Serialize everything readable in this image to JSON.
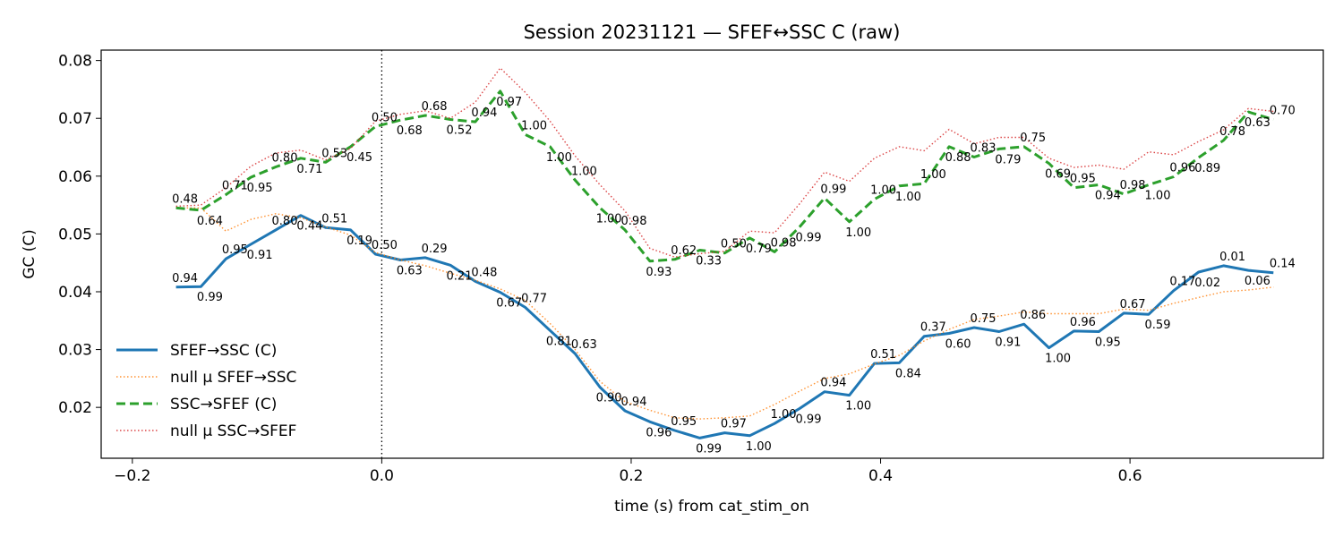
{
  "chart_data": {
    "type": "line",
    "title": "Session 20231121 — SFEF↔SSC C (raw)",
    "xlabel": "time (s) from cat_stim_on",
    "ylabel": "GC (C)",
    "xlim": [
      -0.225,
      0.755
    ],
    "ylim": [
      0.0112,
      0.0818
    ],
    "xticks": [
      -0.2,
      0.0,
      0.2,
      0.4,
      0.6
    ],
    "xtick_labels": [
      "−0.2",
      "0.0",
      "0.2",
      "0.4",
      "0.6"
    ],
    "yticks": [
      0.02,
      0.03,
      0.04,
      0.05,
      0.06,
      0.07,
      0.08
    ],
    "ytick_labels": [
      "0.02",
      "0.03",
      "0.04",
      "0.05",
      "0.06",
      "0.07",
      "0.08"
    ],
    "vline_x": 0.0,
    "grid": false,
    "legend_position": "lower-left",
    "x": [
      -0.165,
      -0.145,
      -0.125,
      -0.105,
      -0.085,
      -0.065,
      -0.045,
      -0.025,
      -0.005,
      0.015,
      0.035,
      0.055,
      0.075,
      0.095,
      0.115,
      0.135,
      0.155,
      0.175,
      0.195,
      0.215,
      0.235,
      0.255,
      0.275,
      0.295,
      0.315,
      0.335,
      0.355,
      0.375,
      0.395,
      0.415,
      0.435,
      0.455,
      0.475,
      0.495,
      0.515,
      0.535,
      0.555,
      0.575,
      0.595,
      0.615,
      0.635,
      0.655,
      0.675,
      0.695,
      0.715
    ],
    "series": [
      {
        "name": "SFEF→SSC (C)",
        "color": "#1f77b4",
        "style": "solid",
        "values": [
          0.0408,
          0.0409,
          0.0457,
          0.0482,
          0.0507,
          0.0532,
          0.0511,
          0.0507,
          0.0465,
          0.0455,
          0.0459,
          0.0446,
          0.0418,
          0.0399,
          0.0373,
          0.0333,
          0.0293,
          0.0235,
          0.0194,
          0.0175,
          0.016,
          0.0147,
          0.0156,
          0.0151,
          0.0172,
          0.0198,
          0.0227,
          0.0221,
          0.0276,
          0.0277,
          0.0323,
          0.0328,
          0.0338,
          0.0331,
          0.0344,
          0.0303,
          0.0332,
          0.0331,
          0.0363,
          0.0361,
          0.0402,
          0.0434,
          0.0445,
          0.0437,
          0.0433
        ],
        "p_values": [
          "0.94",
          "0.99",
          "0.95",
          "0.91",
          "0.80",
          "0.44",
          "0.51",
          "0.19",
          "0.50",
          "0.63",
          "0.29",
          "0.21",
          "0.48",
          "0.67",
          "0.77",
          "0.81",
          "0.63",
          "0.90",
          "0.94",
          "0.96",
          "0.95",
          "0.99",
          "0.97",
          "1.00",
          "1.00",
          "0.99",
          "0.94",
          "1.00",
          "0.51",
          "0.84",
          "0.37",
          "0.60",
          "0.75",
          "0.91",
          "0.86",
          "1.00",
          "0.96",
          "0.95",
          "0.67",
          "0.59",
          "0.17",
          "0.02",
          "0.01",
          "0.06",
          "0.14"
        ]
      },
      {
        "name": "null μ SFEF→SSC",
        "color": "#ff7f0e",
        "style": "dotted",
        "values": [
          0.0545,
          0.0545,
          0.0505,
          0.0525,
          0.0535,
          0.0528,
          0.0512,
          0.0498,
          0.0468,
          0.0455,
          0.0445,
          0.0432,
          0.042,
          0.0405,
          0.0385,
          0.0345,
          0.03,
          0.0245,
          0.021,
          0.0195,
          0.0182,
          0.018,
          0.0182,
          0.0185,
          0.0205,
          0.0228,
          0.025,
          0.0258,
          0.0275,
          0.029,
          0.0315,
          0.0335,
          0.0352,
          0.0358,
          0.0365,
          0.0362,
          0.0362,
          0.0362,
          0.037,
          0.0368,
          0.038,
          0.039,
          0.04,
          0.0403,
          0.0408
        ]
      },
      {
        "name": "SSC→SFEF (C)",
        "color": "#2ca02c",
        "style": "dashed",
        "values": [
          0.0545,
          0.0541,
          0.0568,
          0.0598,
          0.0616,
          0.0631,
          0.0624,
          0.0651,
          0.0686,
          0.0697,
          0.0705,
          0.0698,
          0.0694,
          0.0747,
          0.0672,
          0.0651,
          0.0593,
          0.0545,
          0.0507,
          0.0453,
          0.0456,
          0.0472,
          0.0467,
          0.0493,
          0.0469,
          0.0512,
          0.0562,
          0.0521,
          0.056,
          0.0583,
          0.0587,
          0.0651,
          0.0633,
          0.0647,
          0.0651,
          0.0622,
          0.058,
          0.0585,
          0.0569,
          0.0585,
          0.0599,
          0.0632,
          0.0662,
          0.0711,
          0.0698
        ],
        "p_values": [
          "0.48",
          "0.64",
          "0.71",
          "0.95",
          "0.80",
          "0.71",
          "0.53",
          "0.45",
          "0.50",
          "0.68",
          "0.68",
          "0.52",
          "0.94",
          "0.97",
          "1.00",
          "1.00",
          "1.00",
          "1.00",
          "0.98",
          "0.93",
          "0.62",
          "0.33",
          "0.50",
          "0.79",
          "0.98",
          "0.99",
          "0.99",
          "1.00",
          "1.00",
          "1.00",
          "1.00",
          "0.88",
          "0.83",
          "0.79",
          "0.75",
          "0.69",
          "0.95",
          "0.94",
          "0.98",
          "1.00",
          "0.96",
          "0.89",
          "0.78",
          "0.63",
          "0.70"
        ]
      },
      {
        "name": "null μ SSC→SFEF",
        "color": "#d62728",
        "style": "dotted",
        "values": [
          0.0548,
          0.055,
          0.058,
          0.0617,
          0.064,
          0.0645,
          0.0628,
          0.0648,
          0.0695,
          0.0707,
          0.0713,
          0.07,
          0.0728,
          0.0787,
          0.0745,
          0.0695,
          0.0635,
          0.0585,
          0.054,
          0.0475,
          0.046,
          0.0466,
          0.047,
          0.0505,
          0.0502,
          0.0552,
          0.0607,
          0.0591,
          0.0631,
          0.0651,
          0.0644,
          0.0681,
          0.0656,
          0.0667,
          0.0667,
          0.0631,
          0.0615,
          0.0619,
          0.0612,
          0.0642,
          0.0637,
          0.066,
          0.068,
          0.0717,
          0.0712
        ]
      }
    ]
  }
}
